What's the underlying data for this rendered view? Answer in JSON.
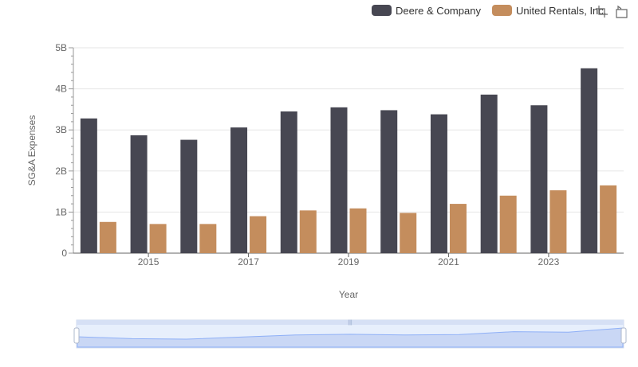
{
  "colors": {
    "deere": "#474752",
    "united": "#c48d5d"
  },
  "legend": [
    {
      "label": "Deere & Company",
      "color": "#474752"
    },
    {
      "label": "United Rentals, Inc.",
      "color": "#c48d5d"
    }
  ],
  "toolbox": [
    {
      "icon": "zoom-select-icon"
    },
    {
      "icon": "zoom-reset-icon"
    }
  ],
  "chart_data": {
    "type": "bar",
    "xlabel": "Year",
    "ylabel": "SG&A Expenses",
    "ylim": [
      0,
      5000000000
    ],
    "y_ticks": [
      "0",
      "1B",
      "2B",
      "3B",
      "4B",
      "5B"
    ],
    "x_tick_labels": [
      "2015",
      "2017",
      "2019",
      "2021",
      "2023"
    ],
    "categories": [
      "2014",
      "2015",
      "2016",
      "2017",
      "2018",
      "2019",
      "2020",
      "2021",
      "2022",
      "2023",
      "2024"
    ],
    "series": [
      {
        "name": "Deere & Company",
        "values": [
          3280000000,
          2870000000,
          2760000000,
          3060000000,
          3450000000,
          3550000000,
          3480000000,
          3380000000,
          3860000000,
          3600000000,
          4500000000
        ]
      },
      {
        "name": "United Rentals, Inc.",
        "values": [
          760000000,
          710000000,
          710000000,
          900000000,
          1040000000,
          1090000000,
          980000000,
          1200000000,
          1400000000,
          1530000000,
          1650000000
        ]
      }
    ],
    "grid": true,
    "legend_position": "top-right",
    "data_zoom": {
      "range_start": 0,
      "range_end": 100
    }
  }
}
